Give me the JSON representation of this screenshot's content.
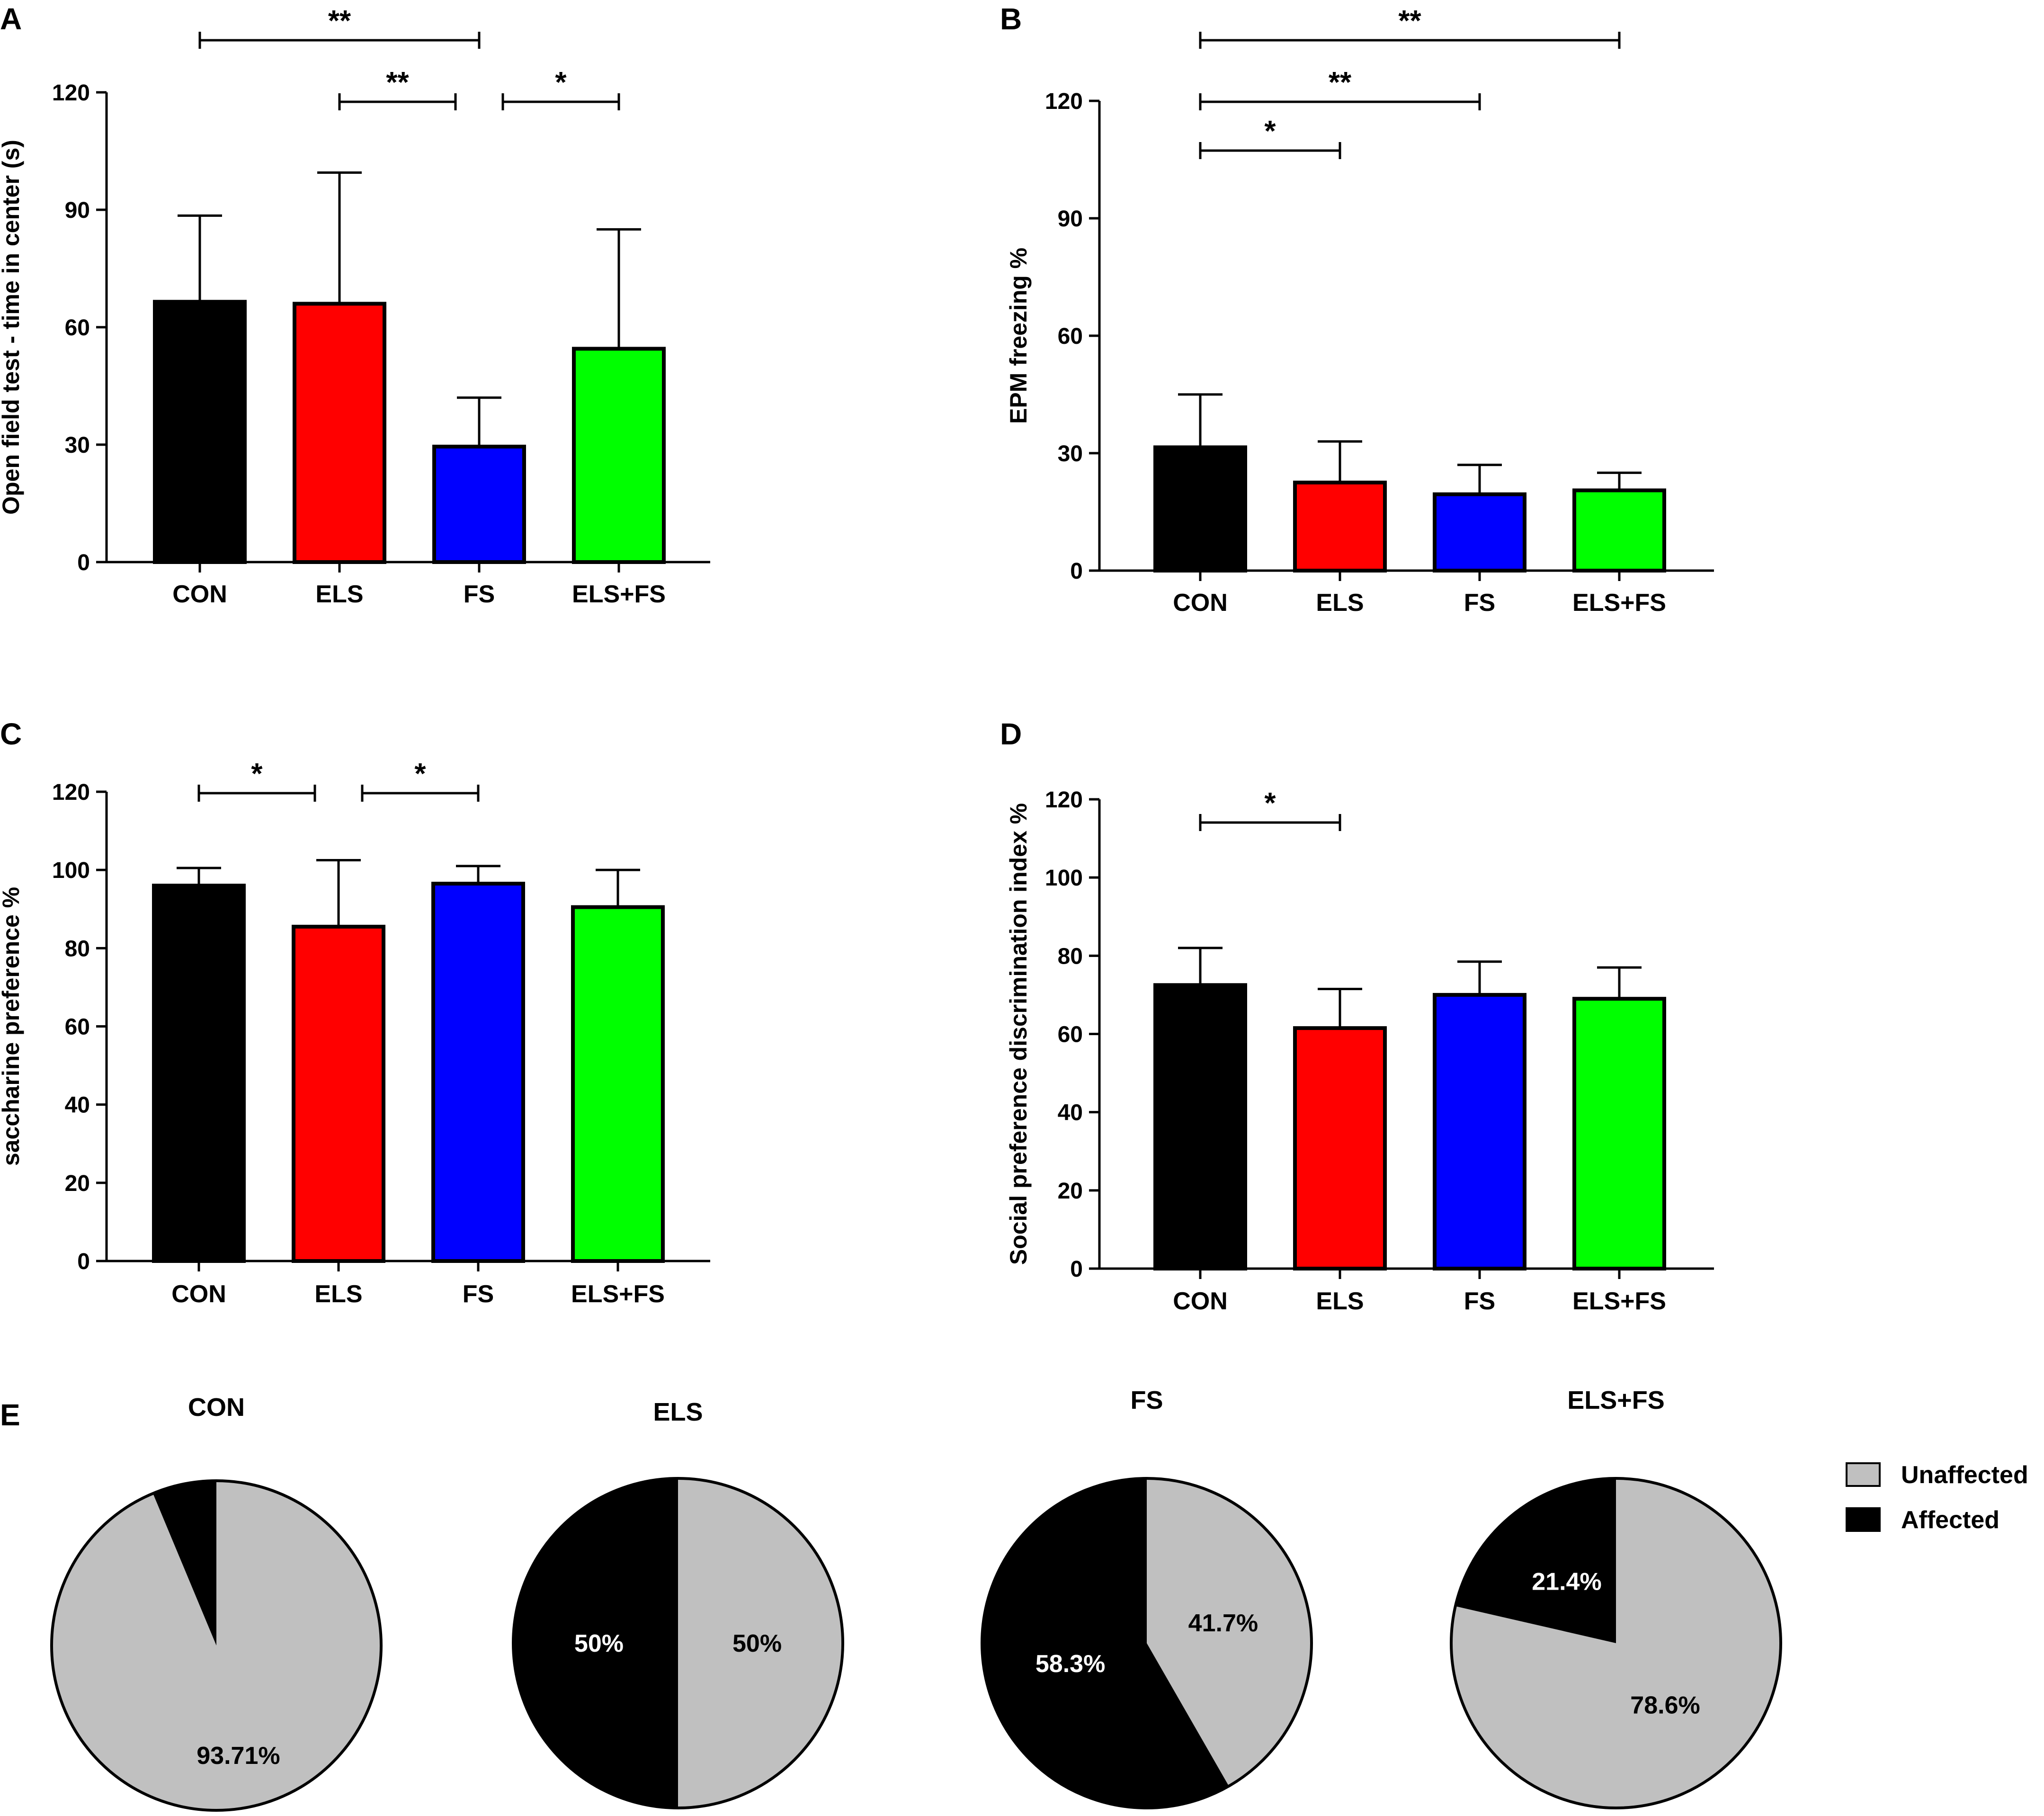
{
  "figure": {
    "panel_e_letter": "E",
    "legend": [
      {
        "label": "Unaffected",
        "color": "#c0c0c0"
      },
      {
        "label": "Affected",
        "color": "#000000"
      }
    ]
  },
  "chart_data": [
    {
      "type": "bar",
      "panel": "A",
      "ylabel": "Open field test - time in center (s)",
      "categories": [
        "CON",
        "ELS",
        "FS",
        "ELS+FS"
      ],
      "colors": [
        "#000000",
        "#ff0000",
        "#0000ff",
        "#00ff00"
      ],
      "values": [
        66.5,
        66,
        29.5,
        54.5
      ],
      "errors": [
        22,
        33.5,
        12.5,
        30.5
      ],
      "ylim": [
        0,
        120
      ],
      "yticks": [
        0,
        30,
        60,
        90,
        120
      ],
      "significance": [
        {
          "from": 0,
          "to": 2,
          "label": "**",
          "level": 3
        },
        {
          "from": 1,
          "to": 2,
          "label": "**",
          "level": 2
        },
        {
          "from": 2,
          "to": 3,
          "label": "*",
          "level": 2
        }
      ]
    },
    {
      "type": "bar",
      "panel": "B",
      "ylabel": "EPM freezing %",
      "categories": [
        "CON",
        "ELS",
        "FS",
        "ELS+FS"
      ],
      "colors": [
        "#000000",
        "#ff0000",
        "#0000ff",
        "#00ff00"
      ],
      "values": [
        31.5,
        22.5,
        19.5,
        20.5
      ],
      "errors": [
        13.5,
        10.5,
        7.5,
        4.5
      ],
      "ylim": [
        0,
        120
      ],
      "yticks": [
        0,
        30,
        60,
        90,
        120
      ],
      "significance": [
        {
          "from": 0,
          "to": 3,
          "label": "**",
          "level": 3
        },
        {
          "from": 0,
          "to": 2,
          "label": "**",
          "level": 2
        },
        {
          "from": 0,
          "to": 1,
          "label": "*",
          "level": 1
        }
      ]
    },
    {
      "type": "bar",
      "panel": "C",
      "ylabel": "saccharine preference %",
      "categories": [
        "CON",
        "ELS",
        "FS",
        "ELS+FS"
      ],
      "colors": [
        "#000000",
        "#ff0000",
        "#0000ff",
        "#00ff00"
      ],
      "values": [
        96,
        85.5,
        96.5,
        90.5
      ],
      "errors": [
        4.5,
        17,
        4.5,
        9.5
      ],
      "ylim": [
        0,
        120
      ],
      "yticks": [
        0,
        20,
        40,
        60,
        80,
        100,
        120
      ],
      "significance": [
        {
          "from": 0,
          "to": 1,
          "label": "*",
          "level": 1
        },
        {
          "from": 1,
          "to": 2,
          "label": "*",
          "level": 1
        }
      ]
    },
    {
      "type": "bar",
      "panel": "D",
      "ylabel": "Social  preference discrimination index %",
      "categories": [
        "CON",
        "ELS",
        "FS",
        "ELS+FS"
      ],
      "colors": [
        "#000000",
        "#ff0000",
        "#0000ff",
        "#00ff00"
      ],
      "values": [
        72.5,
        61.5,
        70,
        69
      ],
      "errors": [
        9.5,
        10,
        8.5,
        8
      ],
      "ylim": [
        0,
        120
      ],
      "yticks": [
        0,
        20,
        40,
        60,
        80,
        100,
        120
      ],
      "significance": [
        {
          "from": 0,
          "to": 1,
          "label": "*",
          "level": 1
        }
      ]
    },
    {
      "type": "pie",
      "panel": "E",
      "title": "CON",
      "slices": [
        {
          "name": "Unaffected",
          "value": 93.71,
          "label": "93.71%",
          "color": "#c0c0c0"
        },
        {
          "name": "Affected",
          "value": 6.29,
          "label": "",
          "color": "#000000"
        }
      ]
    },
    {
      "type": "pie",
      "panel": "E",
      "title": "ELS",
      "slices": [
        {
          "name": "Unaffected",
          "value": 50,
          "label": "50%",
          "color": "#c0c0c0"
        },
        {
          "name": "Affected",
          "value": 50,
          "label": "50%",
          "color": "#000000"
        }
      ]
    },
    {
      "type": "pie",
      "panel": "E",
      "title": "FS",
      "slices": [
        {
          "name": "Unaffected",
          "value": 41.7,
          "label": "41.7%",
          "color": "#c0c0c0"
        },
        {
          "name": "Affected",
          "value": 58.3,
          "label": "58.3%",
          "color": "#000000"
        }
      ]
    },
    {
      "type": "pie",
      "panel": "E",
      "title": "ELS+FS",
      "slices": [
        {
          "name": "Unaffected",
          "value": 78.6,
          "label": "78.6%",
          "color": "#c0c0c0"
        },
        {
          "name": "Affected",
          "value": 21.4,
          "label": "21.4%",
          "color": "#000000"
        }
      ]
    }
  ]
}
